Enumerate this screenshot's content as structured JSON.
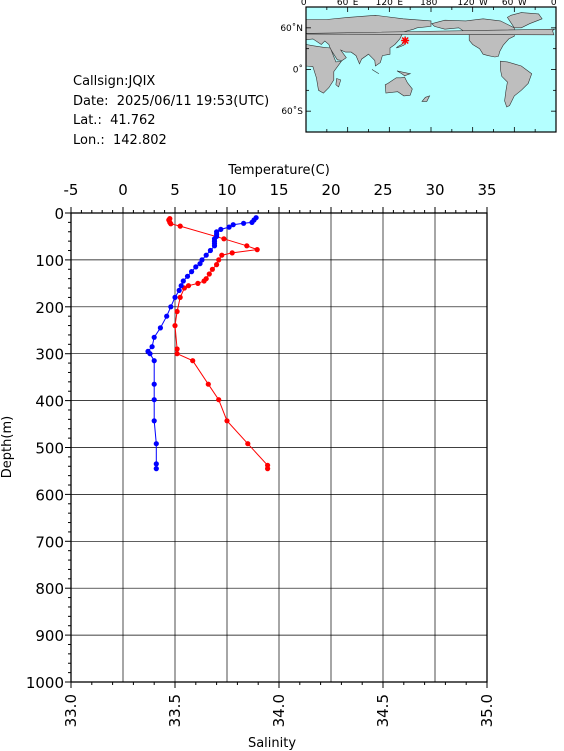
{
  "station": {
    "callsign_label": "Callsign:",
    "callsign": "JQIX",
    "date_label": "Date:",
    "date": "2025/06/11 19:53(UTC)",
    "lat_label": "Lat.:",
    "lat": "41.762",
    "lon_label": "Lon.:",
    "lon": "142.802"
  },
  "map": {
    "top_labels": [
      "0˚",
      "60˚E",
      "120˚E",
      "180˚",
      "120˚W",
      "60˚W",
      "0˚"
    ],
    "left_labels": [
      "60˚N",
      "0˚",
      "60˚S"
    ],
    "marker_lat": 41.762,
    "marker_lon": 142.802,
    "colors": {
      "ocean": "#b4ffff",
      "land": "#bebebe",
      "marker": "#ff0000"
    }
  },
  "chart_data": {
    "type": "line",
    "temperature_axis": {
      "label": "Temperature(C)",
      "range": [
        -5,
        35
      ],
      "ticks": [
        "-5",
        "0",
        "5",
        "10",
        "15",
        "20",
        "25",
        "30",
        "35"
      ]
    },
    "salinity_axis": {
      "label": "Salinity",
      "range": [
        33.0,
        35.0
      ],
      "ticks": [
        "33.0",
        "33.5",
        "34.0",
        "34.5",
        "35.0"
      ]
    },
    "depth_axis": {
      "label": "Depth(m)",
      "range": [
        0,
        1000
      ],
      "ticks": [
        "0",
        "100",
        "200",
        "300",
        "400",
        "500",
        "600",
        "700",
        "800",
        "900",
        "1000"
      ]
    },
    "grid": true,
    "series": [
      {
        "color": "#ff0000",
        "axis": "temperature",
        "points": [
          [
            4.5,
            12
          ],
          [
            4.4,
            15
          ],
          [
            4.5,
            20
          ],
          [
            4.6,
            23
          ],
          [
            5.5,
            28
          ],
          [
            9.7,
            55
          ],
          [
            11.9,
            70
          ],
          [
            12.9,
            78
          ],
          [
            10.5,
            85
          ],
          [
            9.5,
            90
          ],
          [
            9.2,
            100
          ],
          [
            9.0,
            110
          ],
          [
            8.6,
            120
          ],
          [
            8.3,
            130
          ],
          [
            8.0,
            140
          ],
          [
            7.8,
            145
          ],
          [
            7.2,
            150
          ],
          [
            6.3,
            155
          ],
          [
            5.9,
            160
          ],
          [
            5.5,
            180
          ],
          [
            5.2,
            210
          ],
          [
            5.0,
            240
          ],
          [
            5.2,
            290
          ],
          [
            5.2,
            300
          ],
          [
            6.7,
            315
          ],
          [
            8.2,
            365
          ],
          [
            9.2,
            398
          ],
          [
            10.0,
            443
          ],
          [
            12.0,
            492
          ],
          [
            13.9,
            538
          ],
          [
            13.9,
            545
          ]
        ]
      },
      {
        "color": "#0000ff",
        "axis": "salinity",
        "points": [
          [
            33.89,
            10
          ],
          [
            33.88,
            15
          ],
          [
            33.87,
            20
          ],
          [
            33.83,
            22
          ],
          [
            33.78,
            25
          ],
          [
            33.76,
            30
          ],
          [
            33.72,
            35
          ],
          [
            33.7,
            40
          ],
          [
            33.7,
            45
          ],
          [
            33.7,
            50
          ],
          [
            33.69,
            55
          ],
          [
            33.69,
            60
          ],
          [
            33.69,
            65
          ],
          [
            33.69,
            70
          ],
          [
            33.67,
            80
          ],
          [
            33.65,
            90
          ],
          [
            33.63,
            100
          ],
          [
            33.62,
            108
          ],
          [
            33.6,
            115
          ],
          [
            33.58,
            125
          ],
          [
            33.56,
            135
          ],
          [
            33.54,
            145
          ],
          [
            33.53,
            155
          ],
          [
            33.52,
            165
          ],
          [
            33.5,
            180
          ],
          [
            33.48,
            200
          ],
          [
            33.46,
            220
          ],
          [
            33.43,
            245
          ],
          [
            33.4,
            265
          ],
          [
            33.39,
            285
          ],
          [
            33.37,
            295
          ],
          [
            33.38,
            300
          ],
          [
            33.4,
            315
          ],
          [
            33.4,
            365
          ],
          [
            33.4,
            398
          ],
          [
            33.4,
            443
          ],
          [
            33.41,
            492
          ],
          [
            33.41,
            535
          ],
          [
            33.41,
            545
          ]
        ]
      }
    ]
  }
}
